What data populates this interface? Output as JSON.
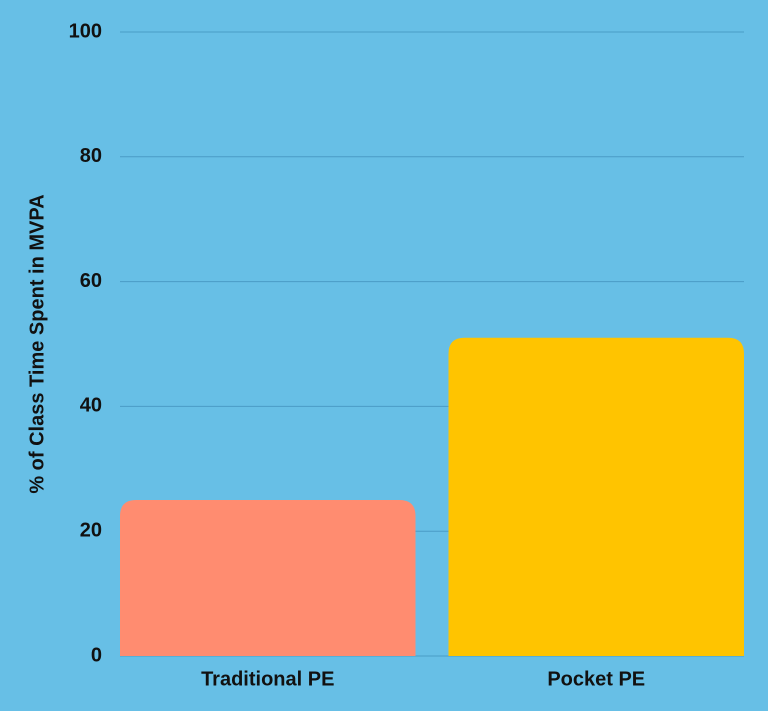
{
  "chart_data": {
    "type": "bar",
    "y_label": "% of Class Time Spent in MVPA",
    "categories": [
      "Traditional PE",
      "Pocket PE"
    ],
    "values": [
      25,
      51
    ],
    "colors": [
      "#ff8c70",
      "#ffc400"
    ],
    "background": "#67bfe6",
    "grid_color": "#4a9cc6",
    "ylim": [
      0,
      100
    ],
    "yticks": [
      0,
      20,
      40,
      60,
      80,
      100
    ],
    "grid": true
  }
}
